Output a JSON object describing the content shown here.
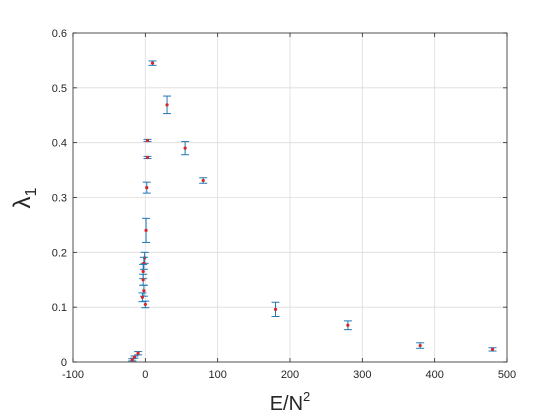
{
  "chart_data": {
    "type": "scatter",
    "title": "",
    "xlabel_base": "E/N",
    "xlabel_sup": "2",
    "ylabel_base": "λ",
    "ylabel_sub": "1",
    "xlim": [
      -100,
      500
    ],
    "ylim": [
      0,
      0.6
    ],
    "xticks": [
      -100,
      0,
      100,
      200,
      300,
      400,
      500
    ],
    "yticks": [
      0,
      0.1,
      0.2,
      0.3,
      0.4,
      0.5,
      0.6
    ],
    "xtick_labels": [
      "-100",
      "0",
      "100",
      "200",
      "300",
      "400",
      "500"
    ],
    "ytick_labels": [
      "0",
      "0.1",
      "0.2",
      "0.3",
      "0.4",
      "0.5",
      "0.6"
    ],
    "grid": true,
    "colors": {
      "point": "#d62728",
      "errorbar": "#1f77b4",
      "grid": "#dcdcdc",
      "axis": "#262626"
    },
    "points": [
      {
        "x": 10,
        "y": 0.545,
        "err": 0.004
      },
      {
        "x": 30,
        "y": 0.469,
        "err": 0.016
      },
      {
        "x": 3,
        "y": 0.404,
        "err": 0.002
      },
      {
        "x": 55,
        "y": 0.39,
        "err": 0.012
      },
      {
        "x": 3,
        "y": 0.373,
        "err": 0.002
      },
      {
        "x": 80,
        "y": 0.331,
        "err": 0.005
      },
      {
        "x": 2,
        "y": 0.318,
        "err": 0.01
      },
      {
        "x": 1,
        "y": 0.24,
        "err": 0.022
      },
      {
        "x": -1,
        "y": 0.19,
        "err": 0.01
      },
      {
        "x": -2,
        "y": 0.18,
        "err": 0.011
      },
      {
        "x": -3,
        "y": 0.165,
        "err": 0.013
      },
      {
        "x": -3,
        "y": 0.15,
        "err": 0.01
      },
      {
        "x": -2,
        "y": 0.13,
        "err": 0.01
      },
      {
        "x": -4,
        "y": 0.118,
        "err": 0.008
      },
      {
        "x": 0,
        "y": 0.105,
        "err": 0.006
      },
      {
        "x": 180,
        "y": 0.096,
        "err": 0.013
      },
      {
        "x": 280,
        "y": 0.067,
        "err": 0.008
      },
      {
        "x": 380,
        "y": 0.03,
        "err": 0.005
      },
      {
        "x": 480,
        "y": 0.023,
        "err": 0.003
      },
      {
        "x": -10,
        "y": 0.016,
        "err": 0.003
      },
      {
        "x": -15,
        "y": 0.009,
        "err": 0.002
      },
      {
        "x": -18,
        "y": 0.004,
        "err": 0.002
      }
    ]
  }
}
